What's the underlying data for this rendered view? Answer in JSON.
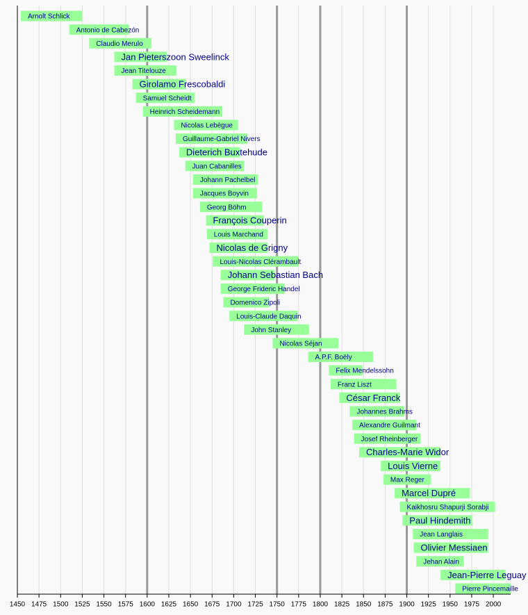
{
  "chart_data": {
    "type": "timeline",
    "categories": [
      "Arnolt Schlick",
      "Antonio de Cabezón",
      "Claudio Merulo",
      "Jan Pieterszoon Sweelinck",
      "Jean Titelouze",
      "Girolamo Frescobaldi",
      "Samuel Scheidt",
      "Heinrich Scheidemann",
      "Nicolas Lebègue",
      "Guillaume-Gabriel Nivers",
      "Dieterich Buxtehude",
      "Juan Cabanilles",
      "Johann Pachelbel",
      "Jacques Boyvin",
      "Georg Böhm",
      "François Couperin",
      "Louis Marchand",
      "Nicolas de Grigny",
      "Louis-Nicolas Clérambault",
      "Johann Sebastian Bach",
      "George Frideric Handel",
      "Domenico Zipoli",
      "Louis-Claude Daquin",
      "John Stanley",
      "Nicolas Séjan",
      "A.P.F. Boëly",
      "Felix Mendelssohn",
      "Franz Liszt",
      "César Franck",
      "Johannes Brahms",
      "Alexandre Guilmant",
      "Josef Rheinberger",
      "Charles-Marie Widor",
      "Louis Vierne",
      "Max Reger",
      "Marcel Dupré",
      "Kaikhosru Shapurji Sorabji",
      "Paul Hindemith",
      "Jean Langlais",
      "Olivier Messiaen",
      "Jehan Alain",
      "Jean-Pierre Leguay",
      "Pierre Pincemaille"
    ],
    "start": [
      1454,
      1510,
      1533,
      1562,
      1562,
      1583,
      1587,
      1595,
      1631,
      1633,
      1637,
      1644,
      1653,
      1653,
      1661,
      1668,
      1669,
      1672,
      1676,
      1685,
      1685,
      1688,
      1695,
      1712,
      1745,
      1786,
      1810,
      1812,
      1822,
      1834,
      1837,
      1839,
      1845,
      1870,
      1873,
      1886,
      1892,
      1895,
      1907,
      1908,
      1911,
      1939,
      1956
    ],
    "end": [
      1525,
      1579,
      1605,
      1623,
      1634,
      1645,
      1655,
      1687,
      1705,
      1716,
      1707,
      1712,
      1728,
      1727,
      1733,
      1735,
      1739,
      1739,
      1775,
      1747,
      1759,
      1741,
      1774,
      1787,
      1821,
      1861,
      1849,
      1888,
      1892,
      1897,
      1911,
      1916,
      1939,
      1939,
      1928,
      1973,
      2002,
      1976,
      1994,
      1994,
      1966,
      2014,
      2020
    ],
    "emphasized": [
      false,
      false,
      false,
      true,
      false,
      true,
      false,
      false,
      false,
      false,
      true,
      false,
      false,
      false,
      false,
      true,
      false,
      true,
      false,
      true,
      false,
      false,
      false,
      false,
      false,
      false,
      false,
      false,
      true,
      false,
      false,
      false,
      true,
      true,
      false,
      true,
      false,
      true,
      false,
      true,
      false,
      true,
      false
    ],
    "color": "#99ff99",
    "label_color": "#00008b",
    "xlim": [
      1450,
      2020
    ],
    "xticks": [
      1450,
      1475,
      1500,
      1525,
      1550,
      1575,
      1600,
      1625,
      1650,
      1675,
      1700,
      1725,
      1750,
      1775,
      1800,
      1825,
      1850,
      1875,
      1900,
      1925,
      1950,
      1975,
      2000
    ],
    "major_lines": [
      1600,
      1750,
      1800,
      1900
    ],
    "grid": true
  }
}
